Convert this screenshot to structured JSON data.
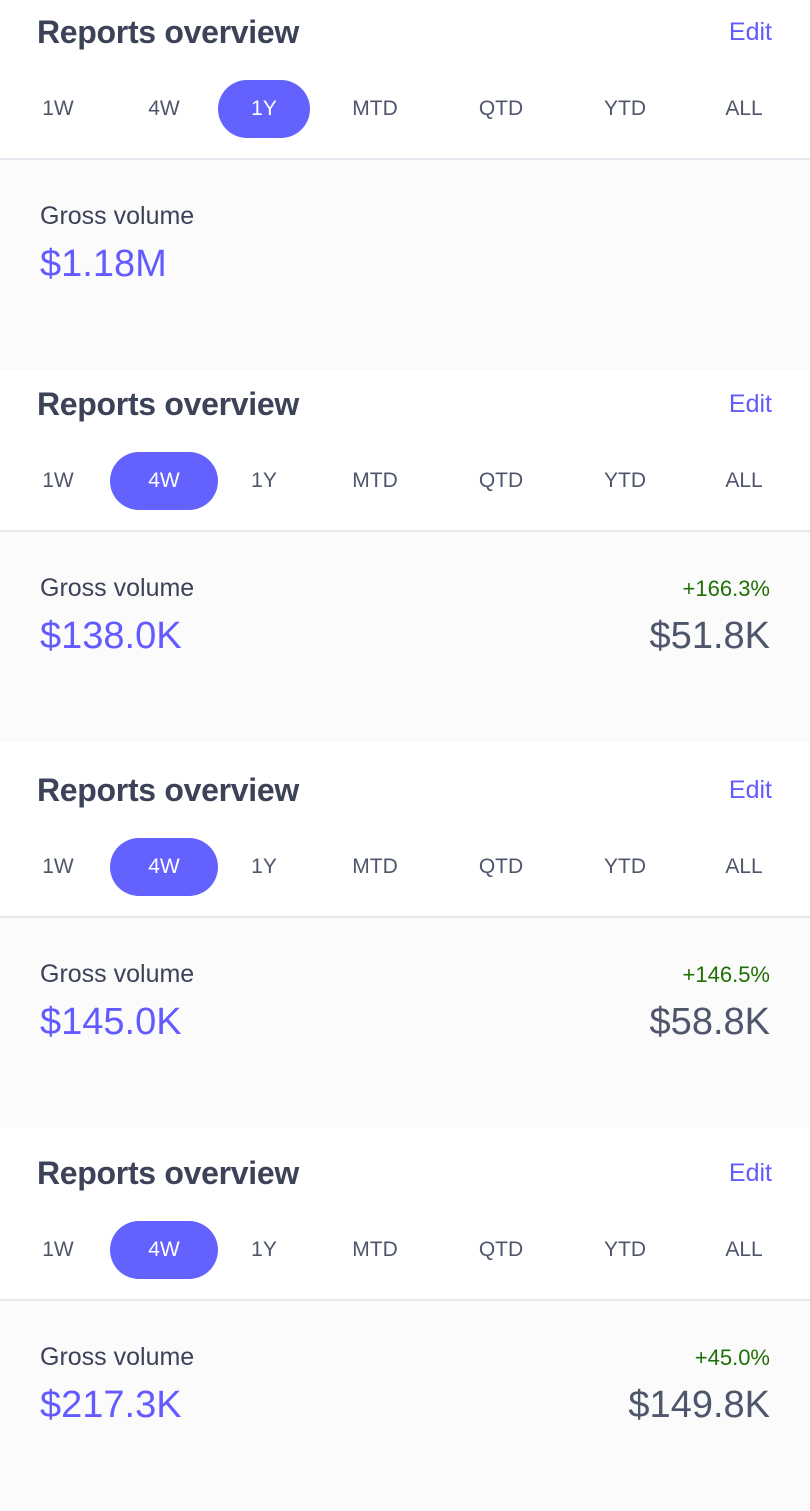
{
  "panels": [
    {
      "title": "Reports overview",
      "edit_label": "Edit",
      "tabs": [
        "1W",
        "4W",
        "1Y",
        "MTD",
        "QTD",
        "YTD",
        "ALL"
      ],
      "active_tab": "1Y",
      "metric_label": "Gross volume",
      "value": "$1.18M",
      "change": "",
      "previous_value": ""
    },
    {
      "title": "Reports overview",
      "edit_label": "Edit",
      "tabs": [
        "1W",
        "4W",
        "1Y",
        "MTD",
        "QTD",
        "YTD",
        "ALL"
      ],
      "active_tab": "4W",
      "metric_label": "Gross volume",
      "value": "$138.0K",
      "change": "+166.3%",
      "previous_value": "$51.8K"
    },
    {
      "title": "Reports overview",
      "edit_label": "Edit",
      "tabs": [
        "1W",
        "4W",
        "1Y",
        "MTD",
        "QTD",
        "YTD",
        "ALL"
      ],
      "active_tab": "4W",
      "metric_label": "Gross volume",
      "value": "$145.0K",
      "change": "+146.5%",
      "previous_value": "$58.8K"
    },
    {
      "title": "Reports overview",
      "edit_label": "Edit",
      "tabs": [
        "1W",
        "4W",
        "1Y",
        "MTD",
        "QTD",
        "YTD",
        "ALL"
      ],
      "active_tab": "4W",
      "metric_label": "Gross volume",
      "value": "$217.3K",
      "change": "+45.0%",
      "previous_value": "$149.8K"
    }
  ],
  "colors": {
    "accent": "#635bff",
    "active_pill": "#6462ff",
    "positive_change": "#217005",
    "text_primary": "#3c4257",
    "text_secondary": "#4f566b",
    "divider": "#e3e8ee"
  }
}
